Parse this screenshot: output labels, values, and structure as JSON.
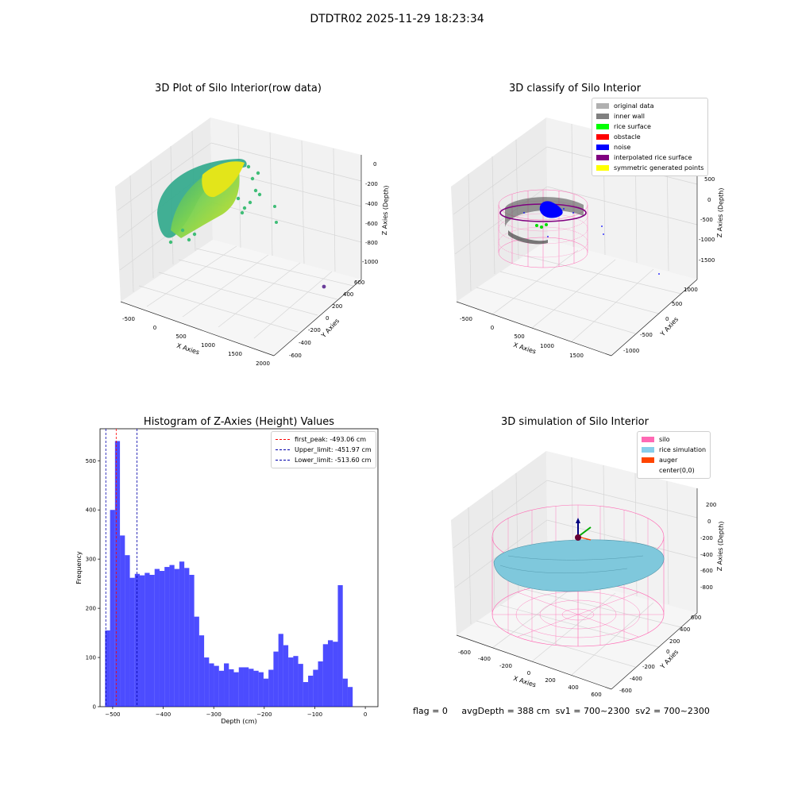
{
  "suptitle": "DTDTR02 2025-11-29 18:23:34",
  "panels": {
    "raw": {
      "title": "3D Plot of Silo Interior(row data)",
      "xlabel": "X Axies",
      "ylabel": "Y Axies",
      "zlabel": "Z Axies (Depth)",
      "xticks": [
        "-500",
        "0",
        "500",
        "1000",
        "1500",
        "2000"
      ],
      "yticks": [
        "-600",
        "-400",
        "-200",
        "0",
        "200",
        "400",
        "600"
      ],
      "zticks": [
        "0",
        "-200",
        "-400",
        "-600",
        "-800",
        "-1000"
      ]
    },
    "classify": {
      "title": "3D classify of Silo Interior",
      "xlabel": "X Axies",
      "ylabel": "Y Axies",
      "zlabel": "Z Axies (Depth)",
      "xticks": [
        "-500",
        "0",
        "500",
        "1000",
        "1500"
      ],
      "yticks": [
        "-1000",
        "-500",
        "0",
        "500",
        "1000"
      ],
      "zticks": [
        "500",
        "0",
        "-500",
        "-1000",
        "-1500"
      ],
      "legend": [
        {
          "label": "original data",
          "color": "#b0b0b0"
        },
        {
          "label": "inner wall",
          "color": "#808080"
        },
        {
          "label": "rice surface",
          "color": "#00ff00"
        },
        {
          "label": "obstacle",
          "color": "#ff0000"
        },
        {
          "label": "noise",
          "color": "#0000ff"
        },
        {
          "label": "interpolated rice surface",
          "color": "#800080"
        },
        {
          "label": "symmetric generated points",
          "color": "#ffff00"
        }
      ]
    },
    "simulation": {
      "title": "3D simulation of Silo Interior",
      "xlabel": "X Axies",
      "ylabel": "Y Axies",
      "zlabel": "Z Axies (Depth)",
      "xticks": [
        "-600",
        "-400",
        "-200",
        "0",
        "200",
        "400",
        "600"
      ],
      "yticks": [
        "-600",
        "-400",
        "-200",
        "0",
        "200",
        "400",
        "600"
      ],
      "zticks": [
        "200",
        "0",
        "-200",
        "-400",
        "-600",
        "-800"
      ],
      "legend": [
        {
          "label": "silo",
          "color": "#ff69b4"
        },
        {
          "label": "rice simulation",
          "color": "#87ceeb"
        },
        {
          "label": "auger",
          "color": "#ff4500"
        },
        {
          "label": "center(0,0)",
          "color": ""
        }
      ]
    }
  },
  "chart_data": {
    "type": "bar",
    "title": "Histogram of Z-Axies (Height) Values",
    "xlabel": "Depth (cm)",
    "ylabel": "Frequency",
    "xlim": [
      -525,
      25
    ],
    "ylim": [
      0,
      565
    ],
    "xticks": [
      -500,
      -400,
      -300,
      -200,
      -100,
      0
    ],
    "yticks": [
      0,
      100,
      200,
      300,
      400,
      500
    ],
    "bar_color": "#0000ff",
    "bins_start": -515,
    "bin_width": 9.8,
    "values": [
      155,
      400,
      540,
      348,
      308,
      262,
      270,
      267,
      272,
      268,
      280,
      276,
      284,
      288,
      280,
      295,
      282,
      268,
      183,
      145,
      100,
      88,
      83,
      73,
      88,
      76,
      70,
      80,
      80,
      77,
      73,
      70,
      57,
      75,
      112,
      148,
      125,
      100,
      103,
      87,
      50,
      63,
      75,
      92,
      127,
      135,
      132,
      247,
      57,
      40
    ],
    "lines": [
      {
        "label": "first_peak: -493.06 cm",
        "x": -493.06,
        "color": "#ff0000"
      },
      {
        "label": "Upper_limit: -451.97 cm",
        "x": -451.97,
        "color": "#0000aa"
      },
      {
        "label": "Lower_limit: -513.60 cm",
        "x": -513.6,
        "color": "#0000aa"
      }
    ]
  },
  "footer": {
    "flag": "flag = 0",
    "avg_depth": "avgDepth = 388 cm",
    "sv1": "sv1 = 700~2300",
    "sv2": "sv2 = 700~2300"
  }
}
